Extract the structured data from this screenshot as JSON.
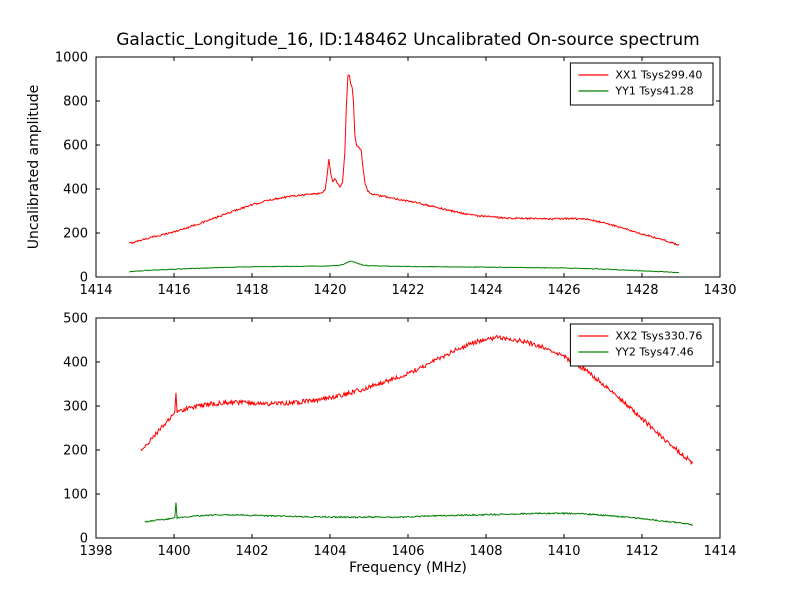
{
  "figure": {
    "title": "Galactic_Longitude_16, ID:148462 Uncalibrated On-source spectrum",
    "xlabel": "Frequency (MHz)",
    "ylabel": "Uncalibrated amplitude",
    "background": "#ffffff",
    "axis_color": "#000000"
  },
  "chart_data": [
    {
      "type": "line",
      "title": "",
      "xlim": [
        1414,
        1430
      ],
      "ylim": [
        0,
        1000
      ],
      "xticks": [
        1414,
        1416,
        1418,
        1420,
        1422,
        1424,
        1426,
        1428,
        1430
      ],
      "yticks": [
        0,
        200,
        400,
        600,
        800,
        1000
      ],
      "grid": false,
      "legend_position": "top-right",
      "series": [
        {
          "name": "XX1 Tsys299.40",
          "color": "#ff0000",
          "noise": 4,
          "points": [
            [
              1414.85,
              152
            ],
            [
              1415.2,
              170
            ],
            [
              1415.6,
              188
            ],
            [
              1416.0,
              205
            ],
            [
              1416.4,
              228
            ],
            [
              1416.8,
              252
            ],
            [
              1417.2,
              278
            ],
            [
              1417.6,
              305
            ],
            [
              1418.0,
              328
            ],
            [
              1418.4,
              348
            ],
            [
              1418.8,
              362
            ],
            [
              1419.2,
              372
            ],
            [
              1419.6,
              378
            ],
            [
              1419.8,
              382
            ],
            [
              1419.88,
              400
            ],
            [
              1419.93,
              470
            ],
            [
              1419.97,
              535
            ],
            [
              1420.02,
              470
            ],
            [
              1420.07,
              432
            ],
            [
              1420.12,
              448
            ],
            [
              1420.18,
              430
            ],
            [
              1420.25,
              408
            ],
            [
              1420.32,
              430
            ],
            [
              1420.38,
              560
            ],
            [
              1420.42,
              780
            ],
            [
              1420.46,
              912
            ],
            [
              1420.5,
              920
            ],
            [
              1420.53,
              878
            ],
            [
              1420.57,
              860
            ],
            [
              1420.6,
              800
            ],
            [
              1420.64,
              640
            ],
            [
              1420.68,
              600
            ],
            [
              1420.74,
              592
            ],
            [
              1420.8,
              575
            ],
            [
              1420.85,
              490
            ],
            [
              1420.9,
              425
            ],
            [
              1420.97,
              390
            ],
            [
              1421.1,
              375
            ],
            [
              1421.4,
              365
            ],
            [
              1421.8,
              352
            ],
            [
              1422.2,
              338
            ],
            [
              1422.6,
              322
            ],
            [
              1423.0,
              305
            ],
            [
              1423.4,
              290
            ],
            [
              1423.8,
              278
            ],
            [
              1424.2,
              272
            ],
            [
              1424.6,
              268
            ],
            [
              1425.0,
              266
            ],
            [
              1425.4,
              264
            ],
            [
              1425.8,
              264
            ],
            [
              1426.2,
              266
            ],
            [
              1426.6,
              262
            ],
            [
              1427.0,
              248
            ],
            [
              1427.4,
              228
            ],
            [
              1427.8,
              205
            ],
            [
              1428.2,
              185
            ],
            [
              1428.6,
              165
            ],
            [
              1428.95,
              145
            ]
          ]
        },
        {
          "name": "YY1 Tsys41.28",
          "color": "#008000",
          "noise": 1.5,
          "points": [
            [
              1414.85,
              24
            ],
            [
              1415.3,
              30
            ],
            [
              1415.8,
              34
            ],
            [
              1416.4,
              38
            ],
            [
              1417.0,
              42
            ],
            [
              1417.6,
              45
            ],
            [
              1418.2,
              47
            ],
            [
              1418.8,
              48
            ],
            [
              1419.4,
              49
            ],
            [
              1419.9,
              50
            ],
            [
              1420.2,
              52
            ],
            [
              1420.35,
              58
            ],
            [
              1420.45,
              68
            ],
            [
              1420.55,
              72
            ],
            [
              1420.65,
              66
            ],
            [
              1420.8,
              56
            ],
            [
              1421.0,
              51
            ],
            [
              1421.5,
              49
            ],
            [
              1422.0,
              48
            ],
            [
              1423.0,
              46
            ],
            [
              1424.0,
              45
            ],
            [
              1425.0,
              43
            ],
            [
              1426.0,
              41
            ],
            [
              1426.8,
              37
            ],
            [
              1427.4,
              33
            ],
            [
              1428.0,
              28
            ],
            [
              1428.5,
              24
            ],
            [
              1428.95,
              20
            ]
          ]
        }
      ]
    },
    {
      "type": "line",
      "title": "",
      "xlim": [
        1398,
        1414
      ],
      "ylim": [
        0,
        500
      ],
      "xticks": [
        1398,
        1400,
        1402,
        1404,
        1406,
        1408,
        1410,
        1412,
        1414
      ],
      "yticks": [
        0,
        100,
        200,
        300,
        400,
        500
      ],
      "grid": false,
      "legend_position": "top-right",
      "series": [
        {
          "name": "XX2 Tsys330.76",
          "color": "#ff0000",
          "noise": 5,
          "points": [
            [
              1399.15,
              198
            ],
            [
              1399.35,
              218
            ],
            [
              1399.55,
              238
            ],
            [
              1399.75,
              258
            ],
            [
              1399.95,
              276
            ],
            [
              1400.02,
              282
            ],
            [
              1400.05,
              328
            ],
            [
              1400.08,
              284
            ],
            [
              1400.2,
              290
            ],
            [
              1400.4,
              296
            ],
            [
              1400.7,
              301
            ],
            [
              1401.0,
              305
            ],
            [
              1401.3,
              307
            ],
            [
              1401.6,
              308
            ],
            [
              1402.0,
              307
            ],
            [
              1402.4,
              305
            ],
            [
              1402.8,
              306
            ],
            [
              1403.2,
              309
            ],
            [
              1403.6,
              313
            ],
            [
              1404.0,
              319
            ],
            [
              1404.4,
              327
            ],
            [
              1404.8,
              337
            ],
            [
              1405.2,
              349
            ],
            [
              1405.6,
              361
            ],
            [
              1406.0,
              374
            ],
            [
              1406.4,
              390
            ],
            [
              1406.8,
              408
            ],
            [
              1407.2,
              426
            ],
            [
              1407.6,
              442
            ],
            [
              1408.0,
              452
            ],
            [
              1408.3,
              456
            ],
            [
              1408.6,
              453
            ],
            [
              1409.0,
              446
            ],
            [
              1409.4,
              436
            ],
            [
              1409.8,
              421
            ],
            [
              1410.2,
              402
            ],
            [
              1410.6,
              378
            ],
            [
              1411.0,
              350
            ],
            [
              1411.4,
              320
            ],
            [
              1411.8,
              288
            ],
            [
              1412.2,
              255
            ],
            [
              1412.6,
              222
            ],
            [
              1413.0,
              192
            ],
            [
              1413.3,
              170
            ]
          ]
        },
        {
          "name": "YY2 Tsys47.46",
          "color": "#008000",
          "noise": 1.5,
          "points": [
            [
              1399.25,
              36
            ],
            [
              1399.5,
              40
            ],
            [
              1399.75,
              42
            ],
            [
              1399.95,
              44
            ],
            [
              1400.02,
              46
            ],
            [
              1400.05,
              80
            ],
            [
              1400.08,
              46
            ],
            [
              1400.3,
              48
            ],
            [
              1400.6,
              50
            ],
            [
              1401.0,
              52
            ],
            [
              1401.4,
              53
            ],
            [
              1401.8,
              52
            ],
            [
              1402.2,
              51
            ],
            [
              1402.6,
              50
            ],
            [
              1403.0,
              49
            ],
            [
              1403.5,
              48
            ],
            [
              1404.0,
              48
            ],
            [
              1404.5,
              47
            ],
            [
              1405.0,
              48
            ],
            [
              1405.5,
              47
            ],
            [
              1406.0,
              48
            ],
            [
              1406.5,
              50
            ],
            [
              1407.0,
              51
            ],
            [
              1407.5,
              52
            ],
            [
              1408.0,
              53
            ],
            [
              1408.5,
              54
            ],
            [
              1409.0,
              55
            ],
            [
              1409.5,
              56
            ],
            [
              1410.0,
              56
            ],
            [
              1410.5,
              55
            ],
            [
              1411.0,
              52
            ],
            [
              1411.5,
              48
            ],
            [
              1412.0,
              44
            ],
            [
              1412.5,
              39
            ],
            [
              1413.0,
              34
            ],
            [
              1413.3,
              30
            ]
          ]
        }
      ]
    }
  ]
}
